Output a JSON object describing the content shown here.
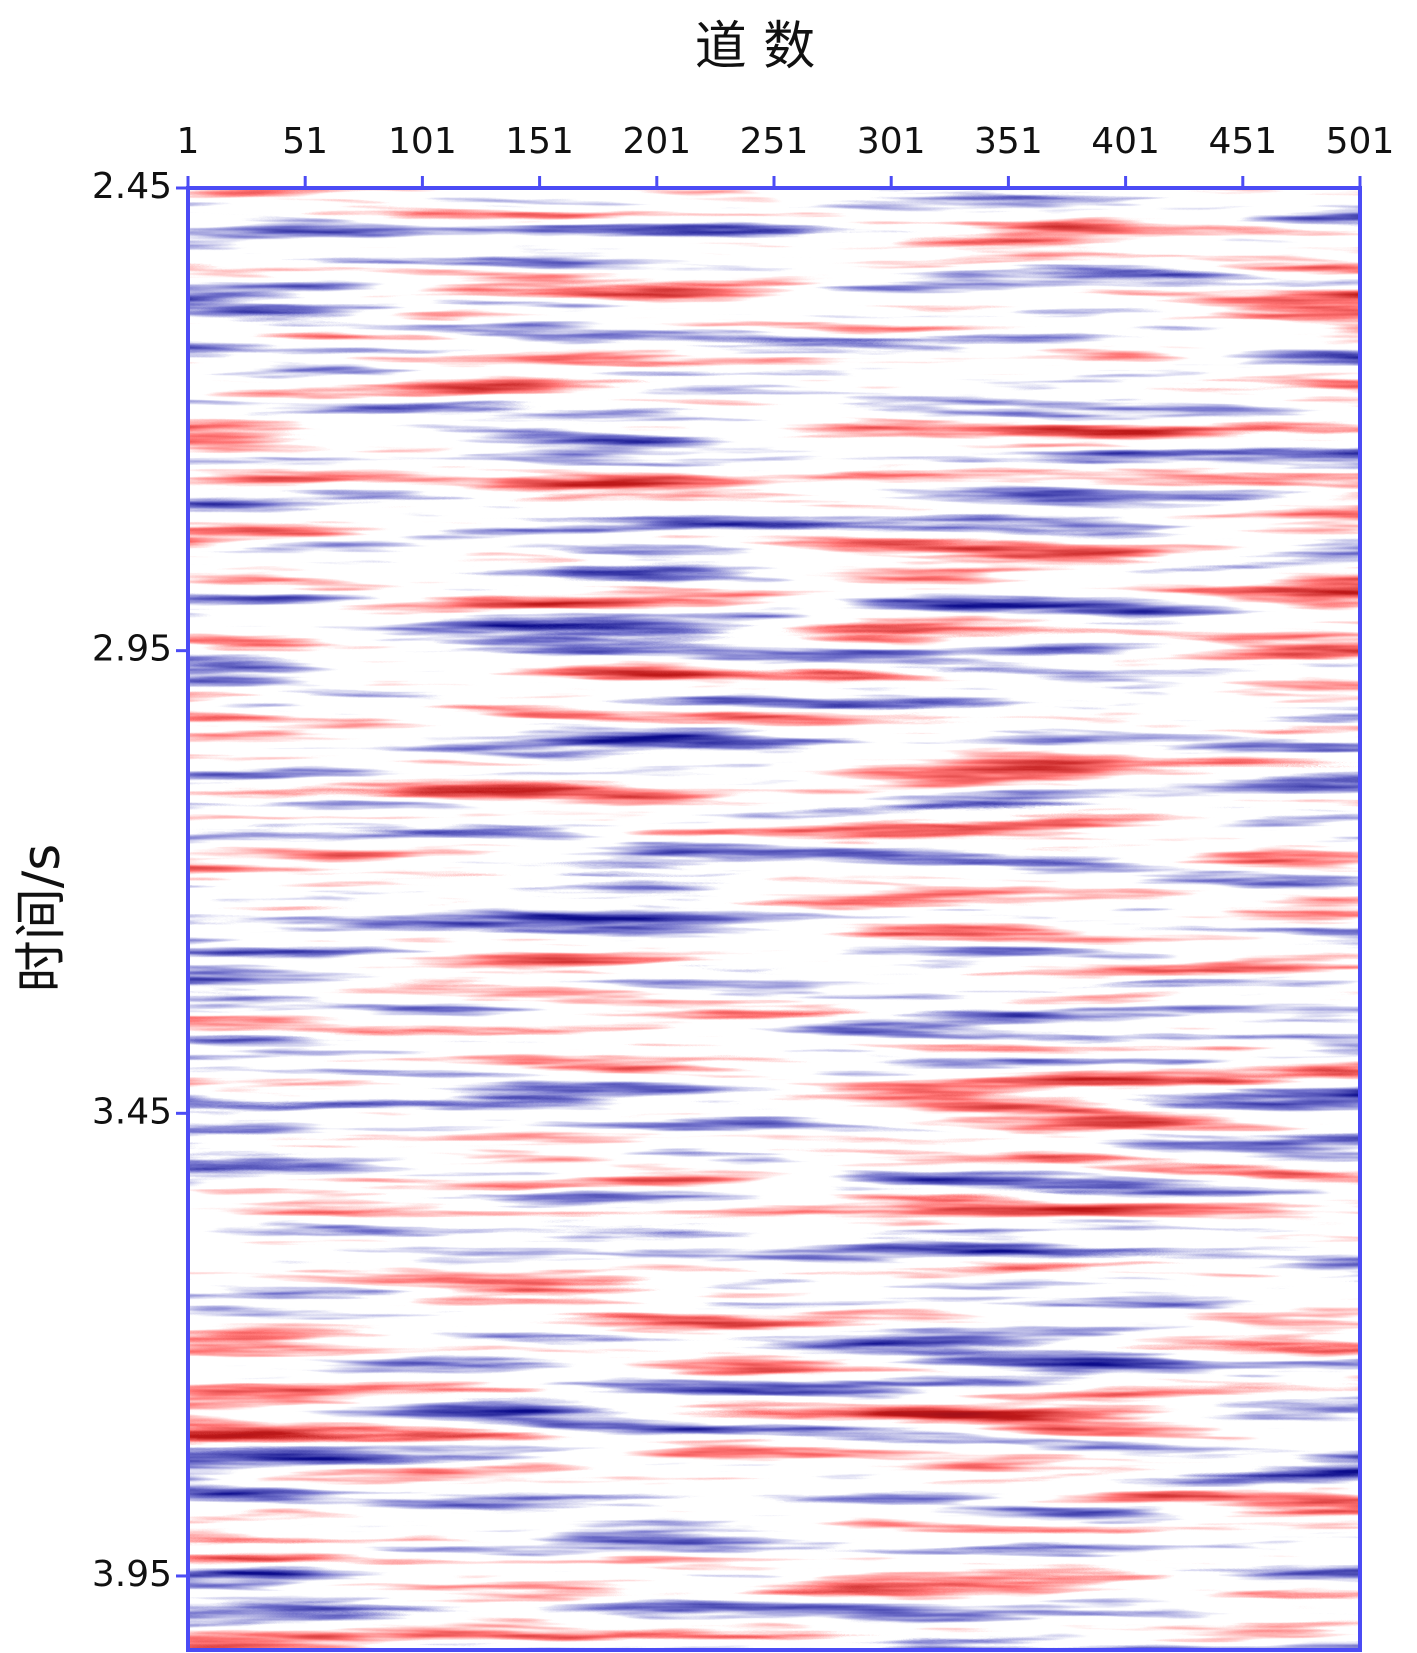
{
  "chart_data": {
    "type": "seismic-section",
    "x_label": "道 数",
    "y_label": "时间/s",
    "xlim": [
      1,
      501
    ],
    "xticks": [
      1,
      51,
      101,
      151,
      201,
      251,
      301,
      351,
      401,
      451,
      501
    ],
    "ylim": [
      2.45,
      4.03
    ],
    "yticks": [
      2.45,
      2.95,
      3.45,
      3.95
    ],
    "axis_color": "#4b4bf5"
  }
}
